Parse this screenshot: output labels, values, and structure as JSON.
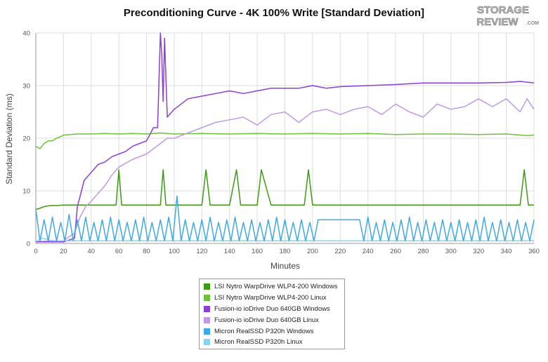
{
  "logo": {
    "line1": "STORAGE",
    "line2": "REVIEW",
    "suffix": ".COM"
  },
  "chart_data": {
    "type": "line",
    "title": "Preconditioning Curve - 4K 100% Write [Standard Deviation]",
    "xlabel": "Minutes",
    "ylabel": "Standard Deviation (ms)",
    "xlim": [
      0,
      360
    ],
    "ylim": [
      0,
      40
    ],
    "xticks": [
      0,
      20,
      40,
      60,
      80,
      100,
      120,
      140,
      160,
      180,
      200,
      220,
      240,
      260,
      280,
      300,
      320,
      340,
      360
    ],
    "yticks": [
      0,
      10,
      20,
      30,
      40
    ],
    "grid": true,
    "legend_position": "bottom-center",
    "series": [
      {
        "name": "LSI Nytro WarpDrive WLP4-200 Windows",
        "color": "#3d9a12",
        "x": [
          0,
          2,
          4,
          6,
          8,
          10,
          15,
          20,
          30,
          40,
          50,
          58,
          60,
          62,
          70,
          80,
          90,
          92,
          94,
          100,
          110,
          120,
          123,
          126,
          130,
          140,
          145,
          148,
          155,
          160,
          163,
          170,
          180,
          190,
          194,
          197,
          200,
          220,
          240,
          260,
          280,
          300,
          320,
          340,
          350,
          353,
          356,
          360
        ],
        "values": [
          6.5,
          6.6,
          6.8,
          7.0,
          7.1,
          7.2,
          7.2,
          7.3,
          7.3,
          7.3,
          7.3,
          7.3,
          14.0,
          7.3,
          7.3,
          7.3,
          7.3,
          14.0,
          7.3,
          7.3,
          7.3,
          7.3,
          14.0,
          7.3,
          7.3,
          7.3,
          14.0,
          7.3,
          7.3,
          7.3,
          14.0,
          7.3,
          7.3,
          7.3,
          7.3,
          14.0,
          7.3,
          7.3,
          7.3,
          7.3,
          7.3,
          7.3,
          7.3,
          7.3,
          7.3,
          14.0,
          7.3,
          7.3
        ]
      },
      {
        "name": "LSI Nytro WarpDrive WLP4-200 Linux",
        "color": "#6cc33a",
        "x": [
          0,
          3,
          6,
          9,
          12,
          15,
          18,
          20,
          25,
          30,
          40,
          50,
          60,
          70,
          80,
          90,
          100,
          120,
          140,
          160,
          180,
          200,
          220,
          240,
          260,
          280,
          300,
          320,
          340,
          355,
          360
        ],
        "values": [
          18.5,
          18.0,
          19.0,
          19.5,
          19.5,
          20.0,
          20.3,
          20.6,
          20.7,
          20.8,
          20.8,
          20.9,
          20.8,
          20.9,
          20.8,
          21.0,
          20.8,
          20.9,
          20.8,
          20.9,
          20.8,
          20.9,
          20.8,
          20.9,
          20.7,
          20.8,
          20.8,
          20.7,
          20.8,
          20.5,
          20.6
        ]
      },
      {
        "name": "Fusion-io ioDrive Duo 640GB Windows",
        "color": "#8b3fd6",
        "x": [
          0,
          10,
          20,
          28,
          30,
          33,
          35,
          40,
          45,
          50,
          55,
          60,
          65,
          70,
          75,
          80,
          85,
          88,
          90,
          91,
          92,
          93,
          95,
          100,
          105,
          110,
          120,
          130,
          140,
          150,
          160,
          170,
          180,
          190,
          200,
          210,
          220,
          240,
          260,
          280,
          300,
          320,
          340,
          350,
          360
        ],
        "values": [
          0.3,
          0.3,
          0.3,
          1.0,
          7.0,
          10.0,
          12.0,
          13.5,
          15.0,
          15.5,
          16.5,
          17.0,
          17.5,
          18.5,
          19.0,
          19.5,
          22.0,
          22.0,
          40.0,
          36.0,
          27.0,
          39.0,
          24.0,
          25.5,
          26.5,
          27.5,
          28.0,
          28.5,
          29.0,
          28.5,
          29.0,
          29.5,
          29.5,
          29.5,
          30.0,
          29.5,
          29.8,
          30.0,
          30.2,
          30.5,
          30.5,
          30.5,
          30.6,
          30.8,
          30.5
        ]
      },
      {
        "name": "Fusion-io ioDrive Duo 640GB Linux",
        "color": "#c09ae6",
        "x": [
          0,
          10,
          20,
          28,
          32,
          36,
          40,
          45,
          50,
          55,
          60,
          70,
          80,
          90,
          95,
          100,
          110,
          120,
          130,
          140,
          150,
          160,
          170,
          180,
          190,
          200,
          210,
          220,
          230,
          240,
          250,
          260,
          270,
          280,
          290,
          300,
          310,
          320,
          330,
          340,
          350,
          355,
          360
        ],
        "values": [
          0.3,
          0.5,
          0.5,
          2.0,
          5.0,
          7.0,
          8.0,
          9.5,
          11.0,
          13.0,
          14.5,
          16.0,
          17.0,
          19.0,
          20.0,
          20.0,
          21.0,
          22.0,
          23.0,
          23.5,
          24.0,
          22.5,
          24.5,
          25.0,
          23.0,
          25.0,
          25.5,
          24.5,
          25.5,
          26.0,
          24.5,
          26.5,
          25.0,
          24.0,
          26.5,
          25.5,
          26.0,
          27.5,
          26.0,
          27.5,
          25.0,
          27.5,
          25.5
        ]
      },
      {
        "name": "Micron RealSSD P320h Windows",
        "color": "#3fa9e6",
        "x": [
          0,
          3,
          6,
          9,
          12,
          15,
          18,
          21,
          24,
          27,
          30,
          33,
          36,
          39,
          42,
          45,
          48,
          51,
          54,
          57,
          60,
          63,
          66,
          69,
          72,
          75,
          78,
          81,
          84,
          87,
          90,
          93,
          96,
          99,
          102,
          105,
          108,
          111,
          114,
          117,
          120,
          123,
          126,
          129,
          132,
          135,
          138,
          141,
          144,
          147,
          150,
          153,
          156,
          159,
          162,
          165,
          168,
          171,
          174,
          177,
          180,
          183,
          186,
          189,
          192,
          195,
          198,
          201,
          204,
          207,
          210,
          213,
          216,
          219,
          222,
          225,
          228,
          231,
          234,
          237,
          240,
          243,
          246,
          249,
          252,
          255,
          258,
          261,
          264,
          267,
          270,
          273,
          276,
          279,
          282,
          285,
          288,
          291,
          294,
          297,
          300,
          303,
          306,
          309,
          312,
          315,
          318,
          321,
          324,
          327,
          330,
          333,
          336,
          339,
          342,
          345,
          348,
          351,
          354,
          357,
          360
        ],
        "values": [
          6.5,
          0.5,
          4.5,
          0.5,
          5.0,
          0.5,
          4.0,
          0.5,
          5.5,
          0.5,
          4.5,
          0.5,
          5.0,
          0.5,
          4.0,
          0.5,
          4.5,
          0.5,
          5.0,
          0.5,
          4.5,
          0.5,
          4.0,
          0.5,
          4.5,
          0.5,
          5.0,
          0.5,
          4.0,
          0.5,
          4.5,
          0.5,
          5.0,
          0.5,
          9.0,
          0.5,
          4.5,
          0.5,
          4.0,
          0.5,
          4.5,
          0.5,
          5.0,
          0.5,
          4.0,
          0.5,
          4.5,
          0.5,
          5.0,
          0.5,
          4.0,
          0.5,
          4.5,
          0.5,
          4.0,
          0.5,
          4.5,
          0.5,
          5.0,
          0.5,
          4.5,
          0.5,
          4.0,
          0.5,
          4.5,
          0.5,
          4.0,
          0.5,
          4.5,
          4.5,
          4.5,
          4.5,
          4.5,
          4.5,
          4.5,
          4.5,
          4.5,
          4.5,
          4.5,
          0.5,
          5.0,
          0.5,
          4.0,
          0.5,
          4.5,
          0.5,
          4.0,
          0.5,
          4.5,
          0.5,
          5.0,
          0.5,
          4.0,
          0.5,
          4.5,
          0.5,
          4.0,
          0.5,
          4.5,
          0.5,
          4.0,
          0.5,
          4.5,
          0.5,
          4.0,
          0.5,
          4.5,
          0.5,
          5.0,
          0.5,
          4.0,
          0.5,
          4.5,
          0.5,
          4.0,
          0.5,
          4.5,
          0.5,
          4.0,
          0.5,
          4.5
        ]
      },
      {
        "name": "Micron RealSSD P320h Linux",
        "color": "#86d3f2",
        "x": [
          0,
          5,
          10,
          15,
          20,
          25,
          30,
          40,
          50,
          60,
          70,
          80,
          90,
          100,
          110,
          120,
          140,
          160,
          180,
          200,
          220,
          240,
          260,
          280,
          300,
          320,
          340,
          360
        ],
        "values": [
          0.4,
          1.0,
          0.6,
          0.5,
          0.5,
          0.5,
          0.5,
          0.5,
          0.5,
          0.5,
          0.5,
          0.5,
          0.5,
          0.5,
          0.5,
          0.5,
          0.5,
          0.5,
          0.5,
          0.5,
          0.5,
          0.5,
          0.5,
          0.5,
          0.5,
          0.5,
          0.5,
          0.5
        ]
      }
    ]
  }
}
